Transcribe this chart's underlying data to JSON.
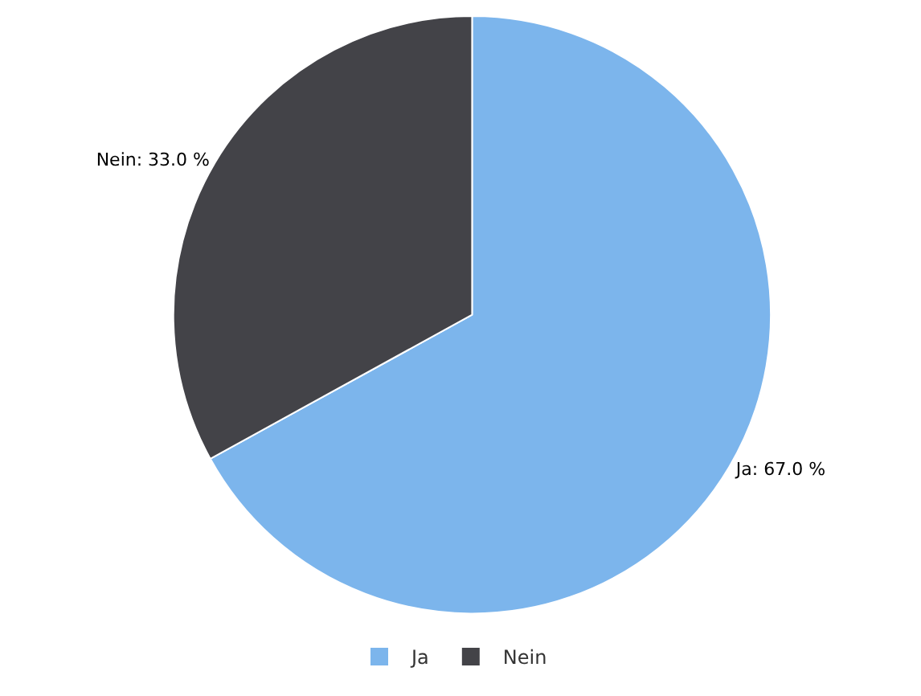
{
  "chart_data": {
    "type": "pie",
    "categories": [
      "Ja",
      "Nein"
    ],
    "values": [
      67.0,
      33.0
    ],
    "colors": [
      "#7cb5ec",
      "#434348"
    ],
    "value_labels": [
      "Ja: 67.0 %",
      "Nein: 33.0 %"
    ],
    "legend": "bottom"
  }
}
